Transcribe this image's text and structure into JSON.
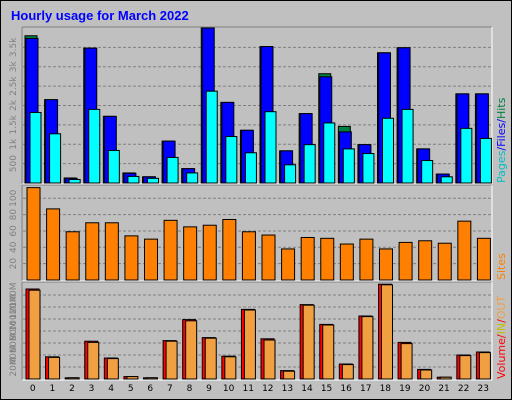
{
  "chart_data": {
    "title": "Hourly usage for March 2022",
    "type": "bar",
    "categories": [
      "0",
      "1",
      "2",
      "3",
      "4",
      "5",
      "6",
      "7",
      "8",
      "9",
      "10",
      "11",
      "12",
      "13",
      "14",
      "15",
      "16",
      "17",
      "18",
      "19",
      "20",
      "21",
      "22",
      "23"
    ],
    "panels": [
      {
        "id": "hits",
        "legend": [
          {
            "text": "Pages",
            "color": "#00c0c0"
          },
          {
            "text": "/",
            "color": "#0000ff"
          },
          {
            "text": "Files",
            "color": "#0000ff"
          },
          {
            "text": "/",
            "color": "#0000ff"
          },
          {
            "text": "Hits",
            "color": "#008040"
          }
        ],
        "ticks": [
          "500",
          "1k",
          "1.5k",
          "2k",
          "2.5k",
          "3k",
          "3.5k"
        ],
        "tick_values": [
          500,
          1000,
          1500,
          2000,
          2500,
          3000,
          3500
        ],
        "ylim": [
          0,
          4000
        ],
        "series": [
          {
            "name": "Hits",
            "color": "#008040",
            "values": [
              3800,
              2150,
              130,
              3480,
              1720,
              260,
              160,
              1080,
              370,
              4000,
              2080,
              1360,
              3520,
              830,
              1790,
              2820,
              1460,
              990,
              3360,
              3490,
              880,
              230,
              2300,
              2300
            ]
          },
          {
            "name": "Files",
            "color": "#0000ff",
            "values": [
              3730,
              2150,
              120,
              3480,
              1720,
              250,
              160,
              1080,
              370,
              4000,
              2080,
              1360,
              3520,
              830,
              1790,
              2740,
              1320,
              990,
              3360,
              3490,
              880,
              230,
              2300,
              2300
            ]
          },
          {
            "name": "Pages",
            "color": "#00ffff",
            "values": [
              1820,
              1270,
              90,
              1900,
              840,
              170,
              120,
              660,
              260,
              2370,
              1200,
              780,
              1840,
              470,
              990,
              1550,
              880,
              760,
              1670,
              1900,
              580,
              160,
              1410,
              1150
            ]
          }
        ]
      },
      {
        "id": "sites",
        "legend": [
          {
            "text": "Sites",
            "color": "#ff8000"
          }
        ],
        "ticks": [
          "20",
          "40",
          "60",
          "80",
          "100"
        ],
        "tick_values": [
          20,
          40,
          60,
          80,
          100
        ],
        "ylim": [
          0,
          115
        ],
        "series": [
          {
            "name": "Sites",
            "color": "#ff8000",
            "values": [
              113,
              87,
              59,
              70,
              70,
              54,
              50,
              73,
              65,
              67,
              74,
              59,
              55,
              38,
              52,
              51,
              44,
              50,
              38,
              46,
              48,
              45,
              72,
              51
            ]
          }
        ]
      },
      {
        "id": "volume",
        "legend": [
          {
            "text": "Volume",
            "color": "#ff0000"
          },
          {
            "text": "/",
            "color": "#ff0000"
          },
          {
            "text": "IN",
            "color": "#c0c000"
          },
          {
            "text": "/",
            "color": "#ff0000"
          },
          {
            "text": "OUT",
            "color": "#f0a040"
          }
        ],
        "ticks": [
          "20M",
          "40M",
          "60M",
          "80M",
          "100M",
          "120M",
          "140M"
        ],
        "tick_values": [
          20,
          40,
          60,
          80,
          100,
          120,
          140
        ],
        "ylim": [
          0,
          160
        ],
        "series": [
          {
            "name": "Volume",
            "color": "#ff0000",
            "values": [
              150,
              37,
              2,
              63,
              35,
              4,
              2,
              64,
              99,
              69,
              38,
              116,
              67,
              14,
              124,
              91,
              25,
              105,
              158,
              61,
              16,
              3,
              40,
              45
            ]
          },
          {
            "name": "OUT",
            "color": "#f0a040",
            "values": [
              148,
              36,
              2,
              61,
              34,
              4,
              2,
              63,
              97,
              68,
              37,
              115,
              65,
              13,
              123,
              90,
              24,
              104,
              157,
              59,
              15,
              3,
              39,
              44
            ]
          }
        ]
      }
    ]
  }
}
